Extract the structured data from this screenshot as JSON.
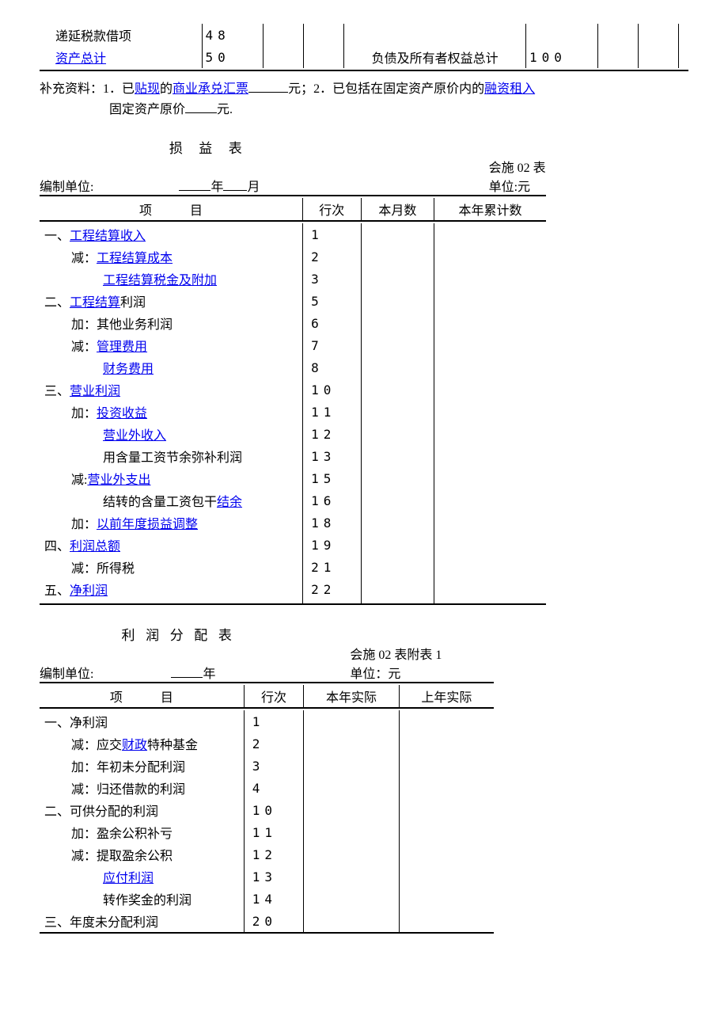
{
  "topTable": {
    "rows": [
      {
        "leftLabel": "递延税款借项",
        "leftLink": false,
        "leftNum": "48",
        "rightLabel": "",
        "rightNum": ""
      },
      {
        "leftLabel": "资产总计",
        "leftLink": true,
        "leftNum": "50",
        "rightLabel": "负债及所有者权益总计",
        "rightNum": "100"
      }
    ]
  },
  "supplement": {
    "prefix": "补充资料：1．已",
    "link1": "贴现",
    "mid1": "的",
    "link2": "商业承兑汇票",
    "mid2": "元；2．已包括在固定资产原价内的",
    "link3": "融资租入",
    "line2a": "固定资产原价",
    "line2b": "元."
  },
  "incomeStatement": {
    "title": "损益表",
    "formNo": "会施 02 表",
    "unitLabel": "编制单位:",
    "yearMonth": "年____月",
    "unitRight": "单位:元",
    "headers": {
      "item": "项",
      "itemB": "目",
      "rowNo": "行次",
      "month": "本月数",
      "ytd": "本年累计数"
    },
    "rows": [
      {
        "prefix": "一、",
        "label": "工程结算收入",
        "link": true,
        "indent": 0,
        "num": "1"
      },
      {
        "prefix": "减：",
        "label": "工程结算成本",
        "link": true,
        "indent": 1,
        "num": "2"
      },
      {
        "prefix": "",
        "label": "工程结算税金及附加",
        "link": true,
        "indent": 2,
        "num": "3"
      },
      {
        "prefix": "二、",
        "labelPre": "工程结算",
        "labelPost": "利润",
        "link": true,
        "indent": 0,
        "num": "5"
      },
      {
        "prefix": "加：",
        "label": "其他业务利润",
        "link": false,
        "indent": 1,
        "num": "6"
      },
      {
        "prefix": "减：",
        "label": "管理费用",
        "link": true,
        "indent": 1,
        "num": "7"
      },
      {
        "prefix": "",
        "label": "财务费用",
        "link": true,
        "indent": 2,
        "num": "8"
      },
      {
        "prefix": "三、",
        "label": "营业利润",
        "link": true,
        "indent": 0,
        "num": "10"
      },
      {
        "prefix": "加：",
        "label": "投资收益",
        "link": true,
        "indent": 1,
        "num": "11"
      },
      {
        "prefix": "",
        "label": "营业外收入",
        "link": true,
        "indent": 2,
        "num": "12"
      },
      {
        "prefix": "",
        "label": "用含量工资节余弥补利润",
        "link": false,
        "indent": 2,
        "num": "13"
      },
      {
        "prefix": "减:",
        "label": "营业外支出",
        "link": true,
        "indent": 1,
        "num": "15"
      },
      {
        "prefix": "",
        "labelPre2": "结转的含量工资包干",
        "labelLink2": "结余",
        "indent": 2,
        "num": "16"
      },
      {
        "prefix": "加：",
        "label": "以前年度损益调整",
        "link": true,
        "indent": 1,
        "num": "18"
      },
      {
        "prefix": "四、",
        "label": "利润总额",
        "link": true,
        "indent": 0,
        "num": "19"
      },
      {
        "prefix": "减：",
        "label": "所得税",
        "link": false,
        "indent": 1,
        "num": "21"
      },
      {
        "prefix": "五、",
        "label": "净利润",
        "link": true,
        "indent": 0,
        "num": "22"
      }
    ]
  },
  "distribution": {
    "title": "利润分配表",
    "formNo": "会施 02 表附表 1",
    "unitLabel": "编制单位:",
    "year": "年",
    "unitRight": "单位：元",
    "headers": {
      "item": "项",
      "itemB": "目",
      "rowNo": "行次",
      "thisYear": "本年实际",
      "lastYear": "上年实际"
    },
    "rows": [
      {
        "prefix": "一、",
        "label": "净利润",
        "link": false,
        "indent": 0,
        "num": "1"
      },
      {
        "prefix": "减：",
        "labelPre2": "应交",
        "labelLink2": "财政",
        "labelPost2": "特种基金",
        "indent": 1,
        "num": "2"
      },
      {
        "prefix": "加：",
        "label": "年初未分配利润",
        "link": false,
        "indent": 1,
        "num": "3"
      },
      {
        "prefix": "减：",
        "label": "归还借款的利润",
        "link": false,
        "indent": 1,
        "num": "4"
      },
      {
        "prefix": "二、",
        "label": "可供分配的利润",
        "link": false,
        "indent": 0,
        "num": "10"
      },
      {
        "prefix": "加：",
        "label": "盈余公积补亏",
        "link": false,
        "indent": 1,
        "num": "11"
      },
      {
        "prefix": "减：",
        "label": "提取盈余公积",
        "link": false,
        "indent": 1,
        "num": "12"
      },
      {
        "prefix": "",
        "label": "应付利润",
        "link": true,
        "indent": 2,
        "num": "13"
      },
      {
        "prefix": "",
        "label": "转作奖金的利润",
        "link": false,
        "indent": 2,
        "num": "14"
      },
      {
        "prefix": "三、",
        "label": "年度未分配利润",
        "link": false,
        "indent": 0,
        "num": "20"
      }
    ]
  }
}
